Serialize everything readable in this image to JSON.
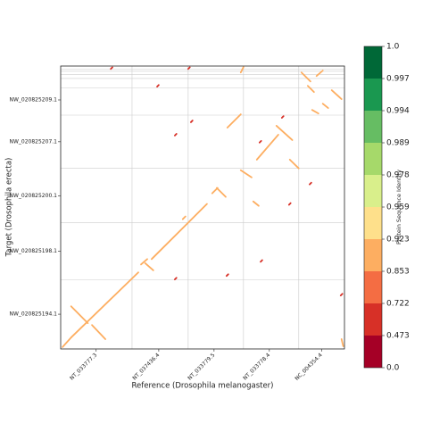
{
  "chart_data": {
    "type": "dotplot",
    "xlabel": "Reference (Drosophila melanogaster)",
    "ylabel": "Target (Drosophila erecta)",
    "colorbar_label": "Protein Sequence Identity",
    "xlim": [
      0,
      136
    ],
    "ylim": [
      0,
      136
    ],
    "xticks": [
      {
        "value": 17,
        "label": "NT_033777.3"
      },
      {
        "value": 47,
        "label": "NT_037436.4"
      },
      {
        "value": 73.5,
        "label": "NT_033779.5"
      },
      {
        "value": 100,
        "label": "NT_033778.4"
      },
      {
        "value": 125,
        "label": "NC_004354.4"
      }
    ],
    "yticks": [
      {
        "value": 16.7,
        "label": "NW_020825194.1"
      },
      {
        "value": 47,
        "label": "NW_020825198.1"
      },
      {
        "value": 73.5,
        "label": "NW_020825200.1"
      },
      {
        "value": 99.6,
        "label": "NW_020825207.1"
      },
      {
        "value": 119.7,
        "label": "NW_020825209.1"
      }
    ],
    "xgrid": [
      34.2,
      61.1,
      87.6,
      114.1
    ],
    "ygrid": [
      33.3,
      60.7,
      86.8,
      112.4,
      125.6,
      130,
      132,
      133.5,
      134.5
    ],
    "grid": true,
    "colorbar_ticks": [
      {
        "value": 0,
        "label": "0.0"
      },
      0.473,
      0.722,
      0.853,
      0.923,
      0.959,
      0.978,
      0.989,
      0.994,
      0.997,
      {
        "value": 1,
        "label": "1.0"
      }
    ],
    "colors": [
      "#a50026",
      "#d73027",
      "#f46d43",
      "#fdae61",
      "#fee08b",
      "#d9ef8b",
      "#a6d96a",
      "#66bd63",
      "#1a9850",
      "#006837"
    ],
    "segments": [
      {
        "x": [
          0.9,
          5.1
        ],
        "y": [
          0.9,
          5.6
        ],
        "identity": 0.9
      },
      {
        "x": [
          5,
          13
        ],
        "y": [
          20.5,
          12.4
        ],
        "identity": 0.9
      },
      {
        "x": [
          15,
          21.4
        ],
        "y": [
          11.5,
          4.7
        ],
        "identity": 0.9
      },
      {
        "x": [
          5.1,
          37.2
        ],
        "y": [
          5.6,
          36.8
        ],
        "identity": 0.9
      },
      {
        "x": [
          38.5,
          41.5
        ],
        "y": [
          40.6,
          43.2
        ],
        "identity": 0.9
      },
      {
        "x": [
          40.5,
          44.4
        ],
        "y": [
          41.2,
          37.8
        ],
        "identity": 0.9
      },
      {
        "x": [
          43.6,
          70.1
        ],
        "y": [
          43.2,
          69.7
        ],
        "identity": 0.9
      },
      {
        "x": [
          58.5,
          59.8
        ],
        "y": [
          62.4,
          63.7
        ],
        "identity": 0.9
      },
      {
        "x": [
          72.6,
          75.2
        ],
        "y": [
          74.8,
          77.4
        ],
        "identity": 0.9
      },
      {
        "x": [
          74.8,
          79.1
        ],
        "y": [
          77.4,
          73.1
        ],
        "identity": 0.9
      },
      {
        "x": [
          92.3,
          94.9
        ],
        "y": [
          70.9,
          68.8
        ],
        "identity": 0.9
      },
      {
        "x": [
          86.3,
          91.5
        ],
        "y": [
          85.9,
          82.5
        ],
        "identity": 0.9
      },
      {
        "x": [
          94,
          104.3
        ],
        "y": [
          91,
          103
        ],
        "identity": 0.9
      },
      {
        "x": [
          103.4,
          111
        ],
        "y": [
          107.3,
          100.4
        ],
        "identity": 0.9
      },
      {
        "x": [
          79.9,
          86.3
        ],
        "y": [
          106.4,
          112.8
        ],
        "identity": 0.9
      },
      {
        "x": [
          109.8,
          114.1
        ],
        "y": [
          91,
          86.8
        ],
        "identity": 0.9
      },
      {
        "x": [
          115.4,
          119.7
        ],
        "y": [
          132.9,
          128.6
        ],
        "identity": 0.9
      },
      {
        "x": [
          118.4,
          121.4
        ],
        "y": [
          126.5,
          123.5
        ],
        "identity": 0.9
      },
      {
        "x": [
          129.9,
          134.6
        ],
        "y": [
          124.4,
          120.1
        ],
        "identity": 0.9
      },
      {
        "x": [
          125.6,
          128.2
        ],
        "y": [
          117.9,
          115.8
        ],
        "identity": 0.9
      },
      {
        "x": [
          120.5,
          123.5
        ],
        "y": [
          114.9,
          113.2
        ],
        "identity": 0.9
      },
      {
        "x": [
          122.6,
          125.6
        ],
        "y": [
          131.2,
          133.8
        ],
        "identity": 0.9
      },
      {
        "x": [
          134.6,
          135.4
        ],
        "y": [
          4.7,
          1.3
        ],
        "identity": 0.9
      },
      {
        "x": [
          86.3,
          87.6
        ],
        "y": [
          132.9,
          135.5
        ],
        "identity": 0.9
      },
      {
        "x": [
          46.2,
          47
        ],
        "y": [
          126.1,
          126.9
        ],
        "identity": 0.6
      },
      {
        "x": [
          62.4,
          63.2
        ],
        "y": [
          109,
          109.8
        ],
        "identity": 0.6
      },
      {
        "x": [
          54.7,
          55.5
        ],
        "y": [
          102.6,
          103.4
        ],
        "identity": 0.6
      },
      {
        "x": [
          95.3,
          96.1
        ],
        "y": [
          99.2,
          100
        ],
        "identity": 0.6
      },
      {
        "x": [
          106,
          106.8
        ],
        "y": [
          111.1,
          111.9
        ],
        "identity": 0.6
      },
      {
        "x": [
          119.3,
          120.1
        ],
        "y": [
          79.1,
          79.9
        ],
        "identity": 0.6
      },
      {
        "x": [
          109.4,
          110.2
        ],
        "y": [
          69.3,
          70.1
        ],
        "identity": 0.6
      },
      {
        "x": [
          95.8,
          96.6
        ],
        "y": [
          41.9,
          42.7
        ],
        "identity": 0.6
      },
      {
        "x": [
          79.5,
          80.3
        ],
        "y": [
          35.1,
          35.9
        ],
        "identity": 0.6
      },
      {
        "x": [
          54.7,
          55.5
        ],
        "y": [
          33.4,
          34.2
        ],
        "identity": 0.6
      },
      {
        "x": [
          134.2,
          135
        ],
        "y": [
          25.7,
          26.5
        ],
        "identity": 0.6
      },
      {
        "x": [
          24,
          24.8
        ],
        "y": [
          134.6,
          135.4
        ],
        "identity": 0.6
      },
      {
        "x": [
          61.1,
          61.9
        ],
        "y": [
          134.6,
          135.4
        ],
        "identity": 0.6
      }
    ]
  }
}
